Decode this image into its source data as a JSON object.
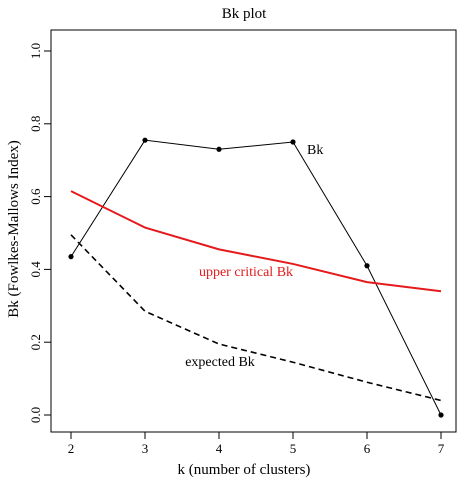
{
  "chart_data": {
    "type": "line",
    "title": "Bk plot",
    "xlabel": "k (number of clusters)",
    "ylabel": "Bk (Fowlkes-Mallows Index)",
    "xlim": [
      2,
      7
    ],
    "ylim": [
      0,
      1
    ],
    "x_ticks": [
      "2",
      "3",
      "4",
      "5",
      "6",
      "7"
    ],
    "y_ticks": [
      "0.0",
      "0.2",
      "0.4",
      "0.6",
      "0.8",
      "1.0"
    ],
    "grid": false,
    "legend": "none",
    "x": [
      2,
      3,
      4,
      5,
      6,
      7
    ],
    "series": [
      {
        "name": "Bk",
        "color": "#000000",
        "style": "solid-with-points",
        "values": [
          0.435,
          0.755,
          0.73,
          0.75,
          0.41,
          0.0
        ]
      },
      {
        "name": "upper critical Bk",
        "color": "#e41a1c",
        "style": "solid",
        "values": [
          0.615,
          0.515,
          0.455,
          0.415,
          0.365,
          0.34
        ]
      },
      {
        "name": "expected Bk",
        "color": "#000000",
        "style": "dashed",
        "values": [
          0.495,
          0.285,
          0.195,
          0.145,
          0.09,
          0.04
        ]
      }
    ]
  }
}
